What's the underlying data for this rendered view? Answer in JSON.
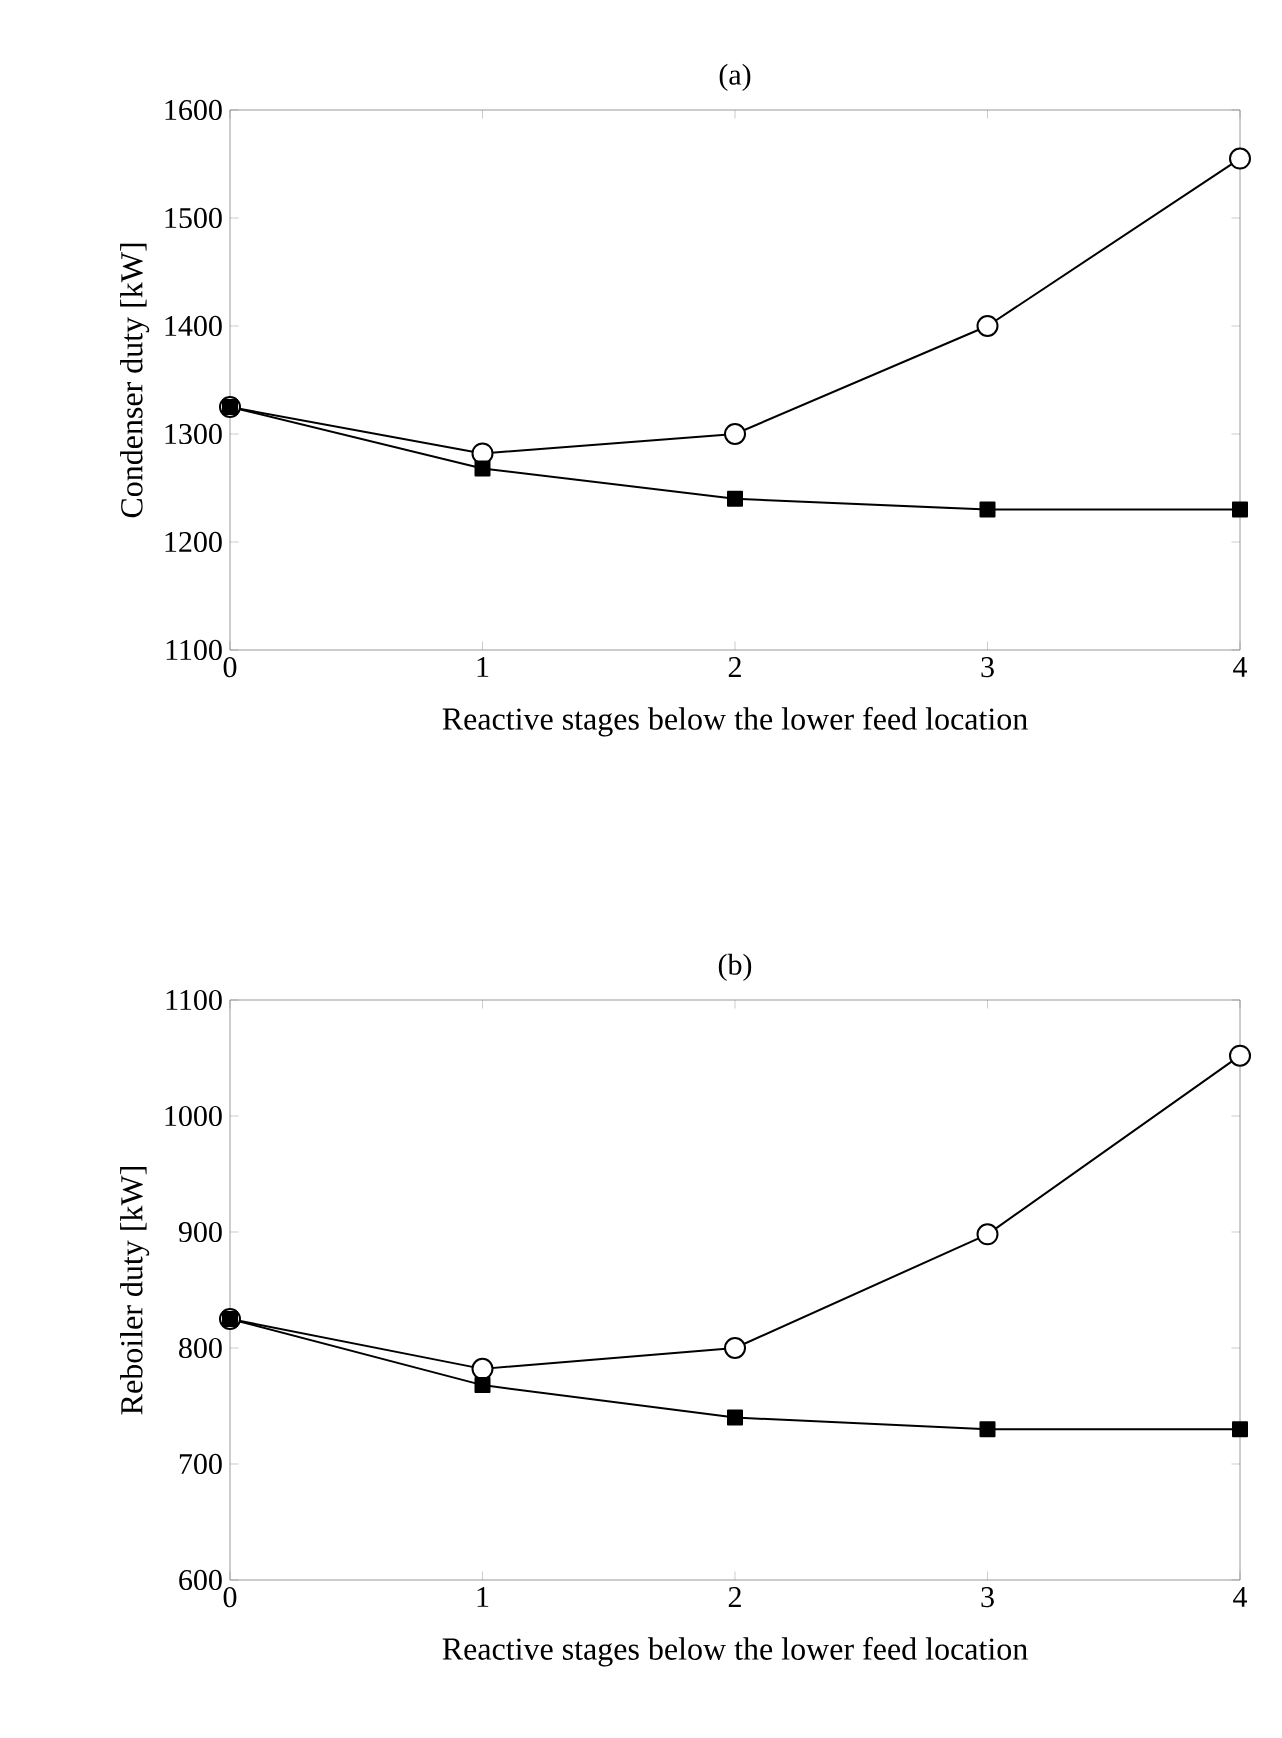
{
  "chart_data": [
    {
      "type": "line",
      "title": "(a)",
      "xlabel": "Reactive stages below the lower feed location",
      "ylabel": "Condenser duty [kW]",
      "x": [
        0,
        1,
        2,
        3,
        4
      ],
      "xlim": [
        0,
        4
      ],
      "xticks": [
        0,
        1,
        2,
        3,
        4
      ],
      "ylim": [
        1100,
        1600
      ],
      "yticks": [
        1100,
        1200,
        1300,
        1400,
        1500,
        1600
      ],
      "grid": false,
      "line_style": "solid",
      "series": [
        {
          "color": "#000000",
          "marker": "circle",
          "values": [
            1325,
            1282,
            1300,
            1400,
            1555
          ]
        },
        {
          "color": "#000000",
          "marker": "square",
          "values": [
            1325,
            1268,
            1240,
            1230,
            1230
          ]
        }
      ]
    },
    {
      "type": "line",
      "title": "(b)",
      "xlabel": "Reactive stages below the lower feed location",
      "ylabel": "Reboiler duty [kW]",
      "x": [
        0,
        1,
        2,
        3,
        4
      ],
      "xlim": [
        0,
        4
      ],
      "xticks": [
        0,
        1,
        2,
        3,
        4
      ],
      "ylim": [
        600,
        1100
      ],
      "yticks": [
        600,
        700,
        800,
        900,
        1000,
        1100
      ],
      "grid": false,
      "line_style": "solid",
      "series": [
        {
          "color": "#000000",
          "marker": "circle",
          "values": [
            825,
            782,
            800,
            898,
            1052
          ]
        },
        {
          "color": "#000000",
          "marker": "square",
          "values": [
            825,
            768,
            740,
            730,
            730
          ]
        }
      ]
    }
  ]
}
